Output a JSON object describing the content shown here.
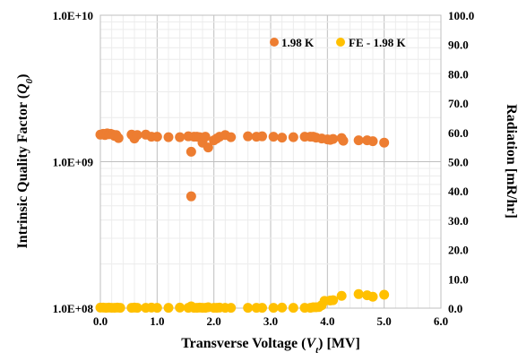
{
  "chart_data": {
    "type": "scatter",
    "x_axis": {
      "ticks": [
        "0.0",
        "1.0",
        "2.0",
        "3.0",
        "4.0",
        "5.0",
        "6.0"
      ],
      "range": [
        0,
        6
      ]
    },
    "y_axis_left": {
      "scale": "log",
      "ticks": [
        "1.0E+08",
        "1.0E+09",
        "1.0E+10"
      ],
      "range": [
        100000000,
        10000000000
      ]
    },
    "y_axis_right": {
      "ticks": [
        "0.0",
        "10.0",
        "20.0",
        "30.0",
        "40.0",
        "50.0",
        "60.0",
        "70.0",
        "80.0",
        "90.0",
        "100.0"
      ],
      "range": [
        0,
        100
      ]
    },
    "legend_position": "top-right",
    "grid": true,
    "series": [
      {
        "name": "1.98 K",
        "color": "#ED7D31",
        "axis": "left",
        "points": [
          [
            0.0,
            1530000000.0
          ],
          [
            0.05,
            1550000000.0
          ],
          [
            0.08,
            1520000000.0
          ],
          [
            0.12,
            1560000000.0
          ],
          [
            0.15,
            1540000000.0
          ],
          [
            0.18,
            1550000000.0
          ],
          [
            0.22,
            1530000000.0
          ],
          [
            0.25,
            1500000000.0
          ],
          [
            0.28,
            1520000000.0
          ],
          [
            0.32,
            1450000000.0
          ],
          [
            0.55,
            1530000000.0
          ],
          [
            0.6,
            1440000000.0
          ],
          [
            0.65,
            1520000000.0
          ],
          [
            0.8,
            1530000000.0
          ],
          [
            0.9,
            1480000000.0
          ],
          [
            1.0,
            1480000000.0
          ],
          [
            1.2,
            1470000000.0
          ],
          [
            1.4,
            1470000000.0
          ],
          [
            1.55,
            1490000000.0
          ],
          [
            1.6,
            1170000000.0
          ],
          [
            1.6,
            580000000.0
          ],
          [
            1.65,
            1480000000.0
          ],
          [
            1.7,
            1480000000.0
          ],
          [
            1.75,
            1470000000.0
          ],
          [
            1.8,
            1350000000.0
          ],
          [
            1.85,
            1480000000.0
          ],
          [
            1.9,
            1250000000.0
          ],
          [
            2.0,
            1400000000.0
          ],
          [
            2.05,
            1440000000.0
          ],
          [
            2.1,
            1480000000.0
          ],
          [
            2.2,
            1520000000.0
          ],
          [
            2.3,
            1470000000.0
          ],
          [
            2.6,
            1490000000.0
          ],
          [
            2.75,
            1480000000.0
          ],
          [
            2.85,
            1490000000.0
          ],
          [
            3.05,
            1480000000.0
          ],
          [
            3.2,
            1460000000.0
          ],
          [
            3.4,
            1470000000.0
          ],
          [
            3.6,
            1480000000.0
          ],
          [
            3.7,
            1480000000.0
          ],
          [
            3.75,
            1480000000.0
          ],
          [
            3.8,
            1460000000.0
          ],
          [
            3.9,
            1440000000.0
          ],
          [
            4.0,
            1420000000.0
          ],
          [
            4.05,
            1410000000.0
          ],
          [
            4.1,
            1430000000.0
          ],
          [
            4.25,
            1450000000.0
          ],
          [
            4.28,
            1390000000.0
          ],
          [
            4.55,
            1400000000.0
          ],
          [
            4.7,
            1400000000.0
          ],
          [
            4.8,
            1380000000.0
          ],
          [
            5.0,
            1350000000.0
          ]
        ]
      },
      {
        "name": "FE - 1.98 K",
        "color": "#FFC000",
        "axis": "right",
        "points": [
          [
            0.0,
            0.2
          ],
          [
            0.05,
            0.2
          ],
          [
            0.1,
            0.1
          ],
          [
            0.15,
            0.2
          ],
          [
            0.2,
            0.1
          ],
          [
            0.25,
            0.1
          ],
          [
            0.3,
            0.2
          ],
          [
            0.35,
            0.1
          ],
          [
            0.55,
            0.1
          ],
          [
            0.6,
            0.2
          ],
          [
            0.65,
            0.1
          ],
          [
            0.8,
            0.1
          ],
          [
            0.9,
            0.2
          ],
          [
            1.0,
            0.1
          ],
          [
            1.2,
            0.1
          ],
          [
            1.4,
            0.2
          ],
          [
            1.55,
            0.1
          ],
          [
            1.6,
            0.6
          ],
          [
            1.65,
            0.1
          ],
          [
            1.7,
            0.1
          ],
          [
            1.75,
            0.2
          ],
          [
            1.8,
            0.1
          ],
          [
            1.85,
            0.1
          ],
          [
            1.9,
            0.3
          ],
          [
            2.0,
            0.1
          ],
          [
            2.05,
            0.1
          ],
          [
            2.1,
            0.2
          ],
          [
            2.2,
            0.1
          ],
          [
            2.3,
            0.1
          ],
          [
            2.6,
            0.1
          ],
          [
            2.75,
            0.1
          ],
          [
            2.85,
            0.1
          ],
          [
            3.05,
            0.1
          ],
          [
            3.2,
            0.2
          ],
          [
            3.4,
            0.1
          ],
          [
            3.6,
            0.1
          ],
          [
            3.7,
            0.1
          ],
          [
            3.75,
            0.3
          ],
          [
            3.8,
            0.3
          ],
          [
            3.85,
            0.4
          ],
          [
            3.9,
            1.0
          ],
          [
            3.95,
            2.5
          ],
          [
            4.05,
            2.6
          ],
          [
            4.1,
            2.7
          ],
          [
            4.25,
            4.2
          ],
          [
            4.55,
            4.8
          ],
          [
            4.7,
            4.4
          ],
          [
            4.8,
            3.9
          ],
          [
            5.0,
            4.6
          ]
        ]
      }
    ]
  }
}
